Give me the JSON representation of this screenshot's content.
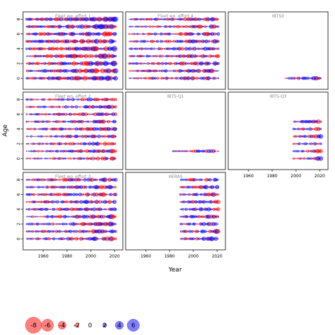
{
  "chart_data": {
    "type": "scatter",
    "subtype": "bubble-residual-grid",
    "xlabel": "Year",
    "ylabel": "Age",
    "xlim": [
      1943,
      2027
    ],
    "ylim": [
      -1.5,
      9.0
    ],
    "x_ticks": [
      1960,
      1980,
      2000,
      2020
    ],
    "y_ticks": [
      0,
      2,
      4,
      6,
      8
    ],
    "colors": {
      "positive": "#0000ff",
      "negative": "#ff0000",
      "frame": "#000000",
      "title": "#8a8a8a"
    },
    "panels": [
      {
        "title": "Fleet wo. effort 1",
        "row": 0,
        "col": 0,
        "years": [
          1946,
          2021
        ],
        "ages": [
          0,
          8
        ],
        "size_scale": 1.0
      },
      {
        "title": "Fleet wo. effort 4",
        "row": 0,
        "col": 1,
        "years": [
          1946,
          2021
        ],
        "ages": [
          0,
          8
        ],
        "size_scale": 0.8
      },
      {
        "title": "IBTS0",
        "row": 0,
        "col": 2,
        "years": [
          1991,
          2021
        ],
        "ages": [
          0,
          0
        ],
        "size_scale": 0.8
      },
      {
        "title": "Fleet wo. effort 2",
        "row": 1,
        "col": 0,
        "years": [
          1946,
          2021
        ],
        "ages": [
          0,
          8
        ],
        "size_scale": 0.75
      },
      {
        "title": "IBTS-Q1",
        "row": 1,
        "col": 1,
        "years": [
          1983,
          2021
        ],
        "ages": [
          1,
          1
        ],
        "size_scale": 0.75
      },
      {
        "title": "IBTS-Q3",
        "row": 1,
        "col": 2,
        "years": [
          1998,
          2021
        ],
        "ages": [
          0,
          5
        ],
        "size_scale": 0.8
      },
      {
        "title": "Fleet wo. effort 3",
        "row": 2,
        "col": 0,
        "years": [
          1946,
          2021
        ],
        "ages": [
          0,
          8
        ],
        "size_scale": 0.85
      },
      {
        "title": "HERAS",
        "row": 2,
        "col": 1,
        "years": [
          1989,
          2021
        ],
        "ages": [
          0,
          8
        ],
        "size_scale": 0.85
      }
    ],
    "x_axis_panels": [
      {
        "row": 1,
        "col": 2
      },
      {
        "row": 2,
        "col": 0
      },
      {
        "row": 2,
        "col": 1
      }
    ],
    "y_axis_panels": [
      {
        "row": 0,
        "col": 0
      },
      {
        "row": 1,
        "col": 0
      },
      {
        "row": 2,
        "col": 0
      }
    ],
    "legend": {
      "placement": "bottom-left",
      "values": [
        -8,
        -6,
        -4,
        -2,
        0,
        2,
        4,
        6
      ]
    }
  }
}
